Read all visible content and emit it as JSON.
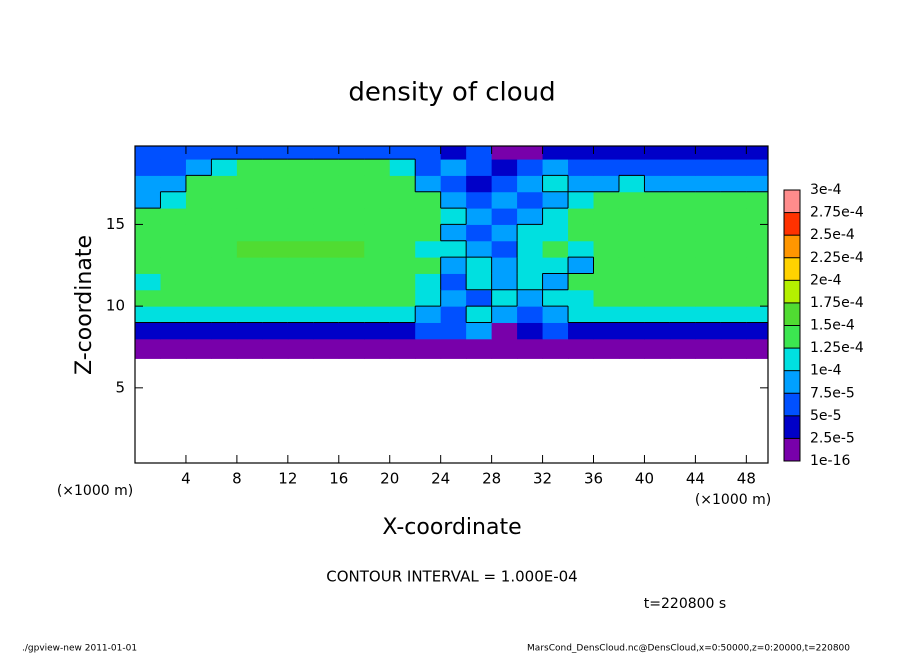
{
  "chart_data": {
    "type": "heatmap",
    "title": "density of cloud",
    "x_label": "X-coordinate",
    "y_label": "Z-coordinate",
    "x_unit": "(×1000 m)",
    "y_unit": "(×1000 m)",
    "xlim": [
      0,
      49.7
    ],
    "ylim": [
      0.4,
      19.8
    ],
    "xticks": [
      4,
      8,
      12,
      16,
      20,
      24,
      28,
      32,
      36,
      40,
      44,
      48
    ],
    "yticks": [
      5,
      10,
      15
    ],
    "x_edges": [
      0,
      2,
      4,
      6,
      8,
      10,
      12,
      14,
      16,
      18,
      20,
      22,
      24,
      26,
      28,
      30,
      32,
      34,
      36,
      38,
      40,
      42,
      44,
      46,
      48,
      49.7
    ],
    "y_edges": [
      0.4,
      6.8,
      8,
      9,
      10,
      11,
      12,
      13,
      14,
      15,
      16,
      17,
      18,
      19,
      19.8
    ],
    "values": [
      [
        null,
        null,
        null,
        null,
        null,
        null,
        null,
        null,
        null,
        null,
        null,
        null,
        null,
        null,
        null,
        null,
        null,
        null,
        null,
        null,
        null,
        null,
        null,
        null,
        null
      ],
      [
        1e-05,
        1e-05,
        1e-05,
        1e-05,
        1e-05,
        1e-05,
        1e-05,
        1e-05,
        1e-05,
        1e-05,
        1e-05,
        1e-05,
        1e-05,
        1e-05,
        1e-05,
        1e-05,
        1e-05,
        1e-05,
        1e-05,
        1e-05,
        1e-05,
        1e-05,
        1e-05,
        1e-05,
        1e-05
      ],
      [
        3.5e-05,
        3.5e-05,
        3.5e-05,
        3.5e-05,
        3.5e-05,
        3.5e-05,
        3.5e-05,
        3.5e-05,
        3.5e-05,
        3.5e-05,
        3.5e-05,
        6e-05,
        6e-05,
        9e-05,
        1e-05,
        3.5e-05,
        6e-05,
        3.5e-05,
        3.5e-05,
        3.5e-05,
        3.5e-05,
        3.5e-05,
        3.5e-05,
        3.5e-05,
        3.5e-05
      ],
      [
        0.00011,
        0.00011,
        0.00011,
        0.00011,
        0.00011,
        0.00011,
        0.00011,
        0.00011,
        0.00011,
        0.00011,
        0.00011,
        9e-05,
        6e-05,
        0.00011,
        9e-05,
        6e-05,
        9e-05,
        0.00011,
        0.00011,
        0.00011,
        0.00011,
        0.00011,
        0.00011,
        0.00011,
        0.00011
      ],
      [
        0.00014,
        0.00014,
        0.00014,
        0.00014,
        0.00014,
        0.00014,
        0.00014,
        0.00014,
        0.00014,
        0.00014,
        0.00014,
        0.00011,
        9e-05,
        6e-05,
        0.00011,
        9e-05,
        0.00011,
        0.00011,
        0.00014,
        0.00014,
        0.00014,
        0.00014,
        0.00014,
        0.00014,
        0.00014
      ],
      [
        0.00011,
        0.00014,
        0.00014,
        0.00014,
        0.00014,
        0.00014,
        0.00014,
        0.00014,
        0.00014,
        0.00014,
        0.00014,
        0.00011,
        6e-05,
        0.00011,
        9e-05,
        0.00011,
        9e-05,
        0.00014,
        0.00014,
        0.00014,
        0.00014,
        0.00014,
        0.00014,
        0.00014,
        0.00014
      ],
      [
        0.00014,
        0.00014,
        0.00014,
        0.00014,
        0.00014,
        0.00014,
        0.00014,
        0.00014,
        0.00014,
        0.00014,
        0.00014,
        0.00014,
        9e-05,
        0.00011,
        9e-05,
        0.00011,
        0.00011,
        9e-05,
        0.00014,
        0.00014,
        0.00014,
        0.00014,
        0.00014,
        0.00014,
        0.00014
      ],
      [
        0.00014,
        0.00014,
        0.00014,
        0.00014,
        0.00016,
        0.00016,
        0.00016,
        0.00016,
        0.00016,
        0.00014,
        0.00014,
        0.00011,
        0.00011,
        9e-05,
        6e-05,
        0.00011,
        0.00014,
        0.00011,
        0.00014,
        0.00014,
        0.00014,
        0.00014,
        0.00014,
        0.00014,
        0.00014
      ],
      [
        0.00014,
        0.00014,
        0.00014,
        0.00014,
        0.00014,
        0.00014,
        0.00014,
        0.00014,
        0.00014,
        0.00014,
        0.00014,
        0.00014,
        9e-05,
        6e-05,
        9e-05,
        0.00011,
        0.00011,
        0.00014,
        0.00014,
        0.00014,
        0.00014,
        0.00014,
        0.00014,
        0.00014,
        0.00014
      ],
      [
        0.00014,
        0.00014,
        0.00014,
        0.00014,
        0.00014,
        0.00014,
        0.00014,
        0.00014,
        0.00014,
        0.00014,
        0.00014,
        0.00014,
        0.00011,
        9e-05,
        6e-05,
        9e-05,
        0.00011,
        0.00014,
        0.00014,
        0.00014,
        0.00014,
        0.00014,
        0.00014,
        0.00014,
        0.00014
      ],
      [
        9e-05,
        0.00011,
        0.00014,
        0.00014,
        0.00014,
        0.00014,
        0.00014,
        0.00014,
        0.00014,
        0.00014,
        0.00014,
        0.00014,
        9e-05,
        6e-05,
        9e-05,
        6e-05,
        9e-05,
        0.00011,
        0.00014,
        0.00014,
        0.00014,
        0.00014,
        0.00014,
        0.00014,
        0.00014
      ],
      [
        9e-05,
        9e-05,
        0.00014,
        0.00014,
        0.00014,
        0.00014,
        0.00014,
        0.00014,
        0.00014,
        0.00014,
        0.00014,
        9e-05,
        6e-05,
        3.5e-05,
        6e-05,
        9e-05,
        0.00011,
        9e-05,
        9e-05,
        0.00011,
        9e-05,
        9e-05,
        9e-05,
        9e-05,
        9e-05
      ],
      [
        6e-05,
        6e-05,
        9e-05,
        0.00011,
        0.00014,
        0.00014,
        0.00014,
        0.00014,
        0.00014,
        0.00014,
        0.00011,
        6e-05,
        9e-05,
        6e-05,
        3.5e-05,
        6e-05,
        9e-05,
        6e-05,
        6e-05,
        6e-05,
        6e-05,
        6e-05,
        6e-05,
        6e-05,
        6e-05
      ],
      [
        6e-05,
        6e-05,
        6e-05,
        6e-05,
        6e-05,
        6e-05,
        6e-05,
        6e-05,
        6e-05,
        6e-05,
        6e-05,
        6e-05,
        3.5e-05,
        6e-05,
        1e-05,
        1e-05,
        3.5e-05,
        3.5e-05,
        3.5e-05,
        3.5e-05,
        3.5e-05,
        3.5e-05,
        3.5e-05,
        3.5e-05,
        3.5e-05
      ]
    ],
    "colorbar": {
      "levels": [
        {
          "value": 1e-16,
          "label": "1e-16"
        },
        {
          "value": 2.5e-05,
          "label": "2.5e-5"
        },
        {
          "value": 5e-05,
          "label": "5e-5"
        },
        {
          "value": 7.5e-05,
          "label": "7.5e-5"
        },
        {
          "value": 0.0001,
          "label": "1e-4"
        },
        {
          "value": 0.000125,
          "label": "1.25e-4"
        },
        {
          "value": 0.00015,
          "label": "1.5e-4"
        },
        {
          "value": 0.000175,
          "label": "1.75e-4"
        },
        {
          "value": 0.0002,
          "label": "2e-4"
        },
        {
          "value": 0.000225,
          "label": "2.25e-4"
        },
        {
          "value": 0.00025,
          "label": "2.5e-4"
        },
        {
          "value": 0.000275,
          "label": "2.75e-4"
        },
        {
          "value": 0.0003,
          "label": "3e-4"
        }
      ],
      "colors": [
        "#7800aa",
        "#0000c8",
        "#0050ff",
        "#00a0ff",
        "#00e0e0",
        "#3ce650",
        "#50dc32",
        "#b4f000",
        "#ffd200",
        "#ff9600",
        "#ff3200",
        "#ff8c8c"
      ]
    },
    "contour_interval": {
      "value": 0.0001,
      "label": "CONTOUR INTERVAL = 1.000E-04"
    },
    "time_label": "t=220800 s",
    "footer_left": "./gpview-new   2011-01-01",
    "footer_right": "MarsCond_DensCloud.nc@DensCloud,x=0:50000,z=0:20000,t=220800"
  }
}
